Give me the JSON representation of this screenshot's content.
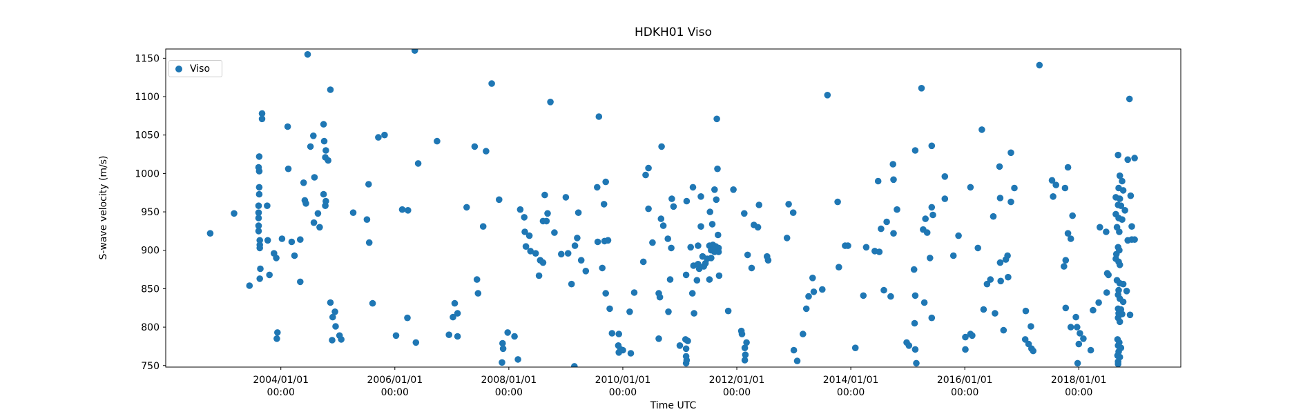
{
  "figure": {
    "background": "#ffffff"
  },
  "chart_data": {
    "type": "scatter",
    "title": "HDKH01 Viso",
    "xlabel": "Time UTC",
    "ylabel": "S-wave velocity (m/s)",
    "legend": {
      "label": "Viso",
      "position": "upper left"
    },
    "marker_color": "#1f77b4",
    "grid": false,
    "xlim_years": [
      2001.98,
      2019.79
    ],
    "ylim": [
      748,
      1162
    ],
    "y_ticks": [
      750,
      800,
      850,
      900,
      950,
      1000,
      1050,
      1100,
      1150
    ],
    "x_ticks": [
      {
        "year": 2004,
        "date_label": "2004/01/01",
        "time_label": "00:00"
      },
      {
        "year": 2006,
        "date_label": "2006/01/01",
        "time_label": "00:00"
      },
      {
        "year": 2008,
        "date_label": "2008/01/01",
        "time_label": "00:00"
      },
      {
        "year": 2010,
        "date_label": "2010/01/01",
        "time_label": "00:00"
      },
      {
        "year": 2012,
        "date_label": "2012/01/01",
        "time_label": "00:00"
      },
      {
        "year": 2014,
        "date_label": "2014/01/01",
        "time_label": "00:00"
      },
      {
        "year": 2016,
        "date_label": "2016/01/01",
        "time_label": "00:00"
      },
      {
        "year": 2018,
        "date_label": "2018/01/01",
        "time_label": "00:00"
      }
    ],
    "points": [
      [
        2002.76,
        922
      ],
      [
        2003.18,
        948
      ],
      [
        2003.45,
        854
      ],
      [
        2003.61,
        1008
      ],
      [
        2003.61,
        958
      ],
      [
        2003.61,
        949
      ],
      [
        2003.61,
        942
      ],
      [
        2003.61,
        932
      ],
      [
        2003.61,
        925
      ],
      [
        2003.62,
        1022
      ],
      [
        2003.62,
        1003
      ],
      [
        2003.62,
        982
      ],
      [
        2003.62,
        973
      ],
      [
        2003.63,
        913
      ],
      [
        2003.63,
        907
      ],
      [
        2003.63,
        903
      ],
      [
        2003.63,
        863
      ],
      [
        2003.64,
        876
      ],
      [
        2003.67,
        1078
      ],
      [
        2003.67,
        1071
      ],
      [
        2003.76,
        958
      ],
      [
        2003.77,
        913
      ],
      [
        2003.8,
        868
      ],
      [
        2003.88,
        896
      ],
      [
        2003.92,
        890
      ],
      [
        2003.93,
        785
      ],
      [
        2003.94,
        793
      ],
      [
        2004.02,
        915
      ],
      [
        2004.12,
        1061
      ],
      [
        2004.13,
        1006
      ],
      [
        2004.19,
        911
      ],
      [
        2004.24,
        893
      ],
      [
        2004.34,
        914
      ],
      [
        2004.34,
        859
      ],
      [
        2004.4,
        988
      ],
      [
        2004.42,
        965
      ],
      [
        2004.44,
        961
      ],
      [
        2004.47,
        1155
      ],
      [
        2004.52,
        1035
      ],
      [
        2004.57,
        1049
      ],
      [
        2004.58,
        936
      ],
      [
        2004.59,
        995
      ],
      [
        2004.65,
        948
      ],
      [
        2004.68,
        930
      ],
      [
        2004.75,
        1064
      ],
      [
        2004.75,
        973
      ],
      [
        2004.76,
        1042
      ],
      [
        2004.78,
        1021
      ],
      [
        2004.78,
        958
      ],
      [
        2004.79,
        1030
      ],
      [
        2004.79,
        964
      ],
      [
        2004.83,
        1017
      ],
      [
        2004.87,
        1109
      ],
      [
        2004.87,
        832
      ],
      [
        2004.9,
        783
      ],
      [
        2004.91,
        813
      ],
      [
        2004.95,
        820
      ],
      [
        2004.96,
        801
      ],
      [
        2005.03,
        789
      ],
      [
        2005.06,
        784
      ],
      [
        2005.27,
        949
      ],
      [
        2005.51,
        940
      ],
      [
        2005.54,
        986
      ],
      [
        2005.55,
        910
      ],
      [
        2005.61,
        831
      ],
      [
        2005.71,
        1047
      ],
      [
        2005.82,
        1050
      ],
      [
        2006.02,
        789
      ],
      [
        2006.13,
        953
      ],
      [
        2006.22,
        812
      ],
      [
        2006.23,
        952
      ],
      [
        2006.35,
        1160
      ],
      [
        2006.37,
        780
      ],
      [
        2006.41,
        1013
      ],
      [
        2006.74,
        1042
      ],
      [
        2006.95,
        790
      ],
      [
        2007.02,
        813
      ],
      [
        2007.05,
        831
      ],
      [
        2007.1,
        818
      ],
      [
        2007.1,
        788
      ],
      [
        2007.26,
        956
      ],
      [
        2007.4,
        1035
      ],
      [
        2007.44,
        862
      ],
      [
        2007.46,
        844
      ],
      [
        2007.55,
        931
      ],
      [
        2007.6,
        1029
      ],
      [
        2007.7,
        1117
      ],
      [
        2007.83,
        966
      ],
      [
        2007.88,
        754
      ],
      [
        2007.89,
        779
      ],
      [
        2007.9,
        772
      ],
      [
        2007.98,
        793
      ],
      [
        2008.1,
        788
      ],
      [
        2008.16,
        758
      ],
      [
        2008.2,
        953
      ],
      [
        2008.27,
        943
      ],
      [
        2008.28,
        924
      ],
      [
        2008.3,
        905
      ],
      [
        2008.36,
        919
      ],
      [
        2008.38,
        899
      ],
      [
        2008.47,
        896
      ],
      [
        2008.53,
        867
      ],
      [
        2008.55,
        887
      ],
      [
        2008.6,
        938
      ],
      [
        2008.6,
        884
      ],
      [
        2008.63,
        972
      ],
      [
        2008.66,
        938
      ],
      [
        2008.68,
        948
      ],
      [
        2008.73,
        1093
      ],
      [
        2008.8,
        923
      ],
      [
        2008.92,
        895
      ],
      [
        2009.0,
        969
      ],
      [
        2009.04,
        896
      ],
      [
        2009.1,
        856
      ],
      [
        2009.15,
        749
      ],
      [
        2009.16,
        906
      ],
      [
        2009.2,
        916
      ],
      [
        2009.22,
        949
      ],
      [
        2009.27,
        887
      ],
      [
        2009.35,
        873
      ],
      [
        2009.55,
        982
      ],
      [
        2009.56,
        911
      ],
      [
        2009.58,
        1074
      ],
      [
        2009.64,
        877
      ],
      [
        2009.67,
        960
      ],
      [
        2009.68,
        912
      ],
      [
        2009.7,
        989
      ],
      [
        2009.7,
        844
      ],
      [
        2009.74,
        913
      ],
      [
        2009.77,
        824
      ],
      [
        2009.81,
        792
      ],
      [
        2009.92,
        776
      ],
      [
        2009.93,
        791
      ],
      [
        2009.93,
        767
      ],
      [
        2009.96,
        771
      ],
      [
        2010.0,
        770
      ],
      [
        2010.12,
        820
      ],
      [
        2010.14,
        766
      ],
      [
        2010.2,
        845
      ],
      [
        2010.36,
        885
      ],
      [
        2010.4,
        998
      ],
      [
        2010.45,
        1007
      ],
      [
        2010.45,
        954
      ],
      [
        2010.52,
        910
      ],
      [
        2010.63,
        844
      ],
      [
        2010.63,
        785
      ],
      [
        2010.65,
        839
      ],
      [
        2010.67,
        941
      ],
      [
        2010.68,
        1035
      ],
      [
        2010.71,
        932
      ],
      [
        2010.79,
        915
      ],
      [
        2010.8,
        820
      ],
      [
        2010.83,
        862
      ],
      [
        2010.85,
        903
      ],
      [
        2010.86,
        967
      ],
      [
        2010.89,
        957
      ],
      [
        2011.0,
        776
      ],
      [
        2011.1,
        784
      ],
      [
        2011.11,
        868
      ],
      [
        2011.11,
        772
      ],
      [
        2011.11,
        762
      ],
      [
        2011.11,
        753
      ],
      [
        2011.12,
        964
      ],
      [
        2011.12,
        757
      ],
      [
        2011.14,
        782
      ],
      [
        2011.19,
        904
      ],
      [
        2011.22,
        844
      ],
      [
        2011.23,
        982
      ],
      [
        2011.24,
        880
      ],
      [
        2011.25,
        818
      ],
      [
        2011.3,
        861
      ],
      [
        2011.32,
        906
      ],
      [
        2011.32,
        882
      ],
      [
        2011.34,
        876
      ],
      [
        2011.37,
        970
      ],
      [
        2011.37,
        931
      ],
      [
        2011.4,
        892
      ],
      [
        2011.42,
        879
      ],
      [
        2011.45,
        883
      ],
      [
        2011.48,
        889
      ],
      [
        2011.52,
        906
      ],
      [
        2011.52,
        862
      ],
      [
        2011.53,
        950
      ],
      [
        2011.55,
        900
      ],
      [
        2011.55,
        890
      ],
      [
        2011.57,
        934
      ],
      [
        2011.58,
        907
      ],
      [
        2011.61,
        979
      ],
      [
        2011.61,
        898
      ],
      [
        2011.63,
        905
      ],
      [
        2011.64,
        966
      ],
      [
        2011.65,
        1071
      ],
      [
        2011.66,
        1006
      ],
      [
        2011.67,
        920
      ],
      [
        2011.68,
        903
      ],
      [
        2011.68,
        898
      ],
      [
        2011.69,
        867
      ],
      [
        2011.85,
        821
      ],
      [
        2011.94,
        979
      ],
      [
        2012.08,
        795
      ],
      [
        2012.09,
        791
      ],
      [
        2012.13,
        948
      ],
      [
        2012.14,
        773
      ],
      [
        2012.14,
        757
      ],
      [
        2012.15,
        764
      ],
      [
        2012.17,
        780
      ],
      [
        2012.19,
        894
      ],
      [
        2012.26,
        877
      ],
      [
        2012.3,
        933
      ],
      [
        2012.37,
        930
      ],
      [
        2012.39,
        959
      ],
      [
        2012.53,
        892
      ],
      [
        2012.55,
        887
      ],
      [
        2012.88,
        916
      ],
      [
        2012.91,
        960
      ],
      [
        2012.99,
        949
      ],
      [
        2013.0,
        770
      ],
      [
        2013.06,
        756
      ],
      [
        2013.16,
        791
      ],
      [
        2013.22,
        824
      ],
      [
        2013.26,
        840
      ],
      [
        2013.33,
        864
      ],
      [
        2013.35,
        846
      ],
      [
        2013.5,
        849
      ],
      [
        2013.59,
        1102
      ],
      [
        2013.77,
        963
      ],
      [
        2013.79,
        878
      ],
      [
        2013.9,
        906
      ],
      [
        2013.95,
        906
      ],
      [
        2014.08,
        773
      ],
      [
        2014.22,
        841
      ],
      [
        2014.27,
        904
      ],
      [
        2014.42,
        899
      ],
      [
        2014.48,
        990
      ],
      [
        2014.5,
        898
      ],
      [
        2014.53,
        928
      ],
      [
        2014.58,
        848
      ],
      [
        2014.63,
        937
      ],
      [
        2014.7,
        840
      ],
      [
        2014.74,
        1012
      ],
      [
        2014.75,
        992
      ],
      [
        2014.75,
        922
      ],
      [
        2014.81,
        953
      ],
      [
        2014.98,
        780
      ],
      [
        2015.02,
        776
      ],
      [
        2015.11,
        875
      ],
      [
        2015.12,
        805
      ],
      [
        2015.13,
        1030
      ],
      [
        2015.13,
        841
      ],
      [
        2015.13,
        771
      ],
      [
        2015.15,
        753
      ],
      [
        2015.24,
        1111
      ],
      [
        2015.27,
        927
      ],
      [
        2015.29,
        832
      ],
      [
        2015.31,
        941
      ],
      [
        2015.34,
        923
      ],
      [
        2015.39,
        890
      ],
      [
        2015.42,
        1036
      ],
      [
        2015.42,
        956
      ],
      [
        2015.42,
        812
      ],
      [
        2015.44,
        946
      ],
      [
        2015.65,
        996
      ],
      [
        2015.65,
        967
      ],
      [
        2015.8,
        893
      ],
      [
        2015.89,
        919
      ],
      [
        2016.01,
        787
      ],
      [
        2016.01,
        771
      ],
      [
        2016.1,
        982
      ],
      [
        2016.1,
        791
      ],
      [
        2016.13,
        789
      ],
      [
        2016.23,
        903
      ],
      [
        2016.3,
        1057
      ],
      [
        2016.33,
        823
      ],
      [
        2016.39,
        856
      ],
      [
        2016.45,
        862
      ],
      [
        2016.5,
        944
      ],
      [
        2016.53,
        818
      ],
      [
        2016.61,
        1009
      ],
      [
        2016.62,
        968
      ],
      [
        2016.62,
        884
      ],
      [
        2016.63,
        860
      ],
      [
        2016.68,
        796
      ],
      [
        2016.72,
        888
      ],
      [
        2016.75,
        893
      ],
      [
        2016.76,
        865
      ],
      [
        2016.81,
        1027
      ],
      [
        2016.81,
        963
      ],
      [
        2016.87,
        981
      ],
      [
        2017.06,
        784
      ],
      [
        2017.07,
        821
      ],
      [
        2017.12,
        778
      ],
      [
        2017.16,
        801
      ],
      [
        2017.17,
        772
      ],
      [
        2017.2,
        769
      ],
      [
        2017.31,
        1141
      ],
      [
        2017.53,
        991
      ],
      [
        2017.55,
        970
      ],
      [
        2017.6,
        985
      ],
      [
        2017.74,
        879
      ],
      [
        2017.76,
        981
      ],
      [
        2017.77,
        887
      ],
      [
        2017.77,
        825
      ],
      [
        2017.81,
        1008
      ],
      [
        2017.81,
        922
      ],
      [
        2017.86,
        915
      ],
      [
        2017.86,
        800
      ],
      [
        2017.89,
        945
      ],
      [
        2017.95,
        813
      ],
      [
        2017.97,
        800
      ],
      [
        2017.98,
        753
      ],
      [
        2018.0,
        778
      ],
      [
        2018.02,
        792
      ],
      [
        2018.08,
        785
      ],
      [
        2018.21,
        770
      ],
      [
        2018.25,
        822
      ],
      [
        2018.35,
        832
      ],
      [
        2018.37,
        930
      ],
      [
        2018.48,
        924
      ],
      [
        2018.49,
        845
      ],
      [
        2018.5,
        870
      ],
      [
        2018.52,
        868
      ],
      [
        2018.65,
        969
      ],
      [
        2018.65,
        947
      ],
      [
        2018.65,
        889
      ],
      [
        2018.66,
        895
      ],
      [
        2018.67,
        930
      ],
      [
        2018.67,
        861
      ],
      [
        2018.68,
        784
      ],
      [
        2018.68,
        763
      ],
      [
        2018.69,
        1024
      ],
      [
        2018.69,
        959
      ],
      [
        2018.69,
        904
      ],
      [
        2018.69,
        842
      ],
      [
        2018.69,
        824
      ],
      [
        2018.69,
        812
      ],
      [
        2018.69,
        776
      ],
      [
        2018.69,
        755
      ],
      [
        2018.69,
        752
      ],
      [
        2018.7,
        981
      ],
      [
        2018.7,
        942
      ],
      [
        2018.7,
        885
      ],
      [
        2018.7,
        848
      ],
      [
        2018.7,
        818
      ],
      [
        2018.7,
        768
      ],
      [
        2018.71,
        924
      ],
      [
        2018.71,
        900
      ],
      [
        2018.71,
        780
      ],
      [
        2018.72,
        997
      ],
      [
        2018.72,
        967
      ],
      [
        2018.72,
        881
      ],
      [
        2018.72,
        857
      ],
      [
        2018.72,
        837
      ],
      [
        2018.72,
        807
      ],
      [
        2018.72,
        761
      ],
      [
        2018.74,
        958
      ],
      [
        2018.74,
        823
      ],
      [
        2018.74,
        773
      ],
      [
        2018.76,
        990
      ],
      [
        2018.76,
        940
      ],
      [
        2018.76,
        817
      ],
      [
        2018.78,
        978
      ],
      [
        2018.78,
        856
      ],
      [
        2018.78,
        833
      ],
      [
        2018.81,
        952
      ],
      [
        2018.84,
        847
      ],
      [
        2018.86,
        1018
      ],
      [
        2018.86,
        913
      ],
      [
        2018.89,
        1097
      ],
      [
        2018.9,
        816
      ],
      [
        2018.91,
        971
      ],
      [
        2018.93,
        931
      ],
      [
        2018.93,
        914
      ],
      [
        2018.98,
        1020
      ],
      [
        2018.98,
        914
      ]
    ]
  }
}
